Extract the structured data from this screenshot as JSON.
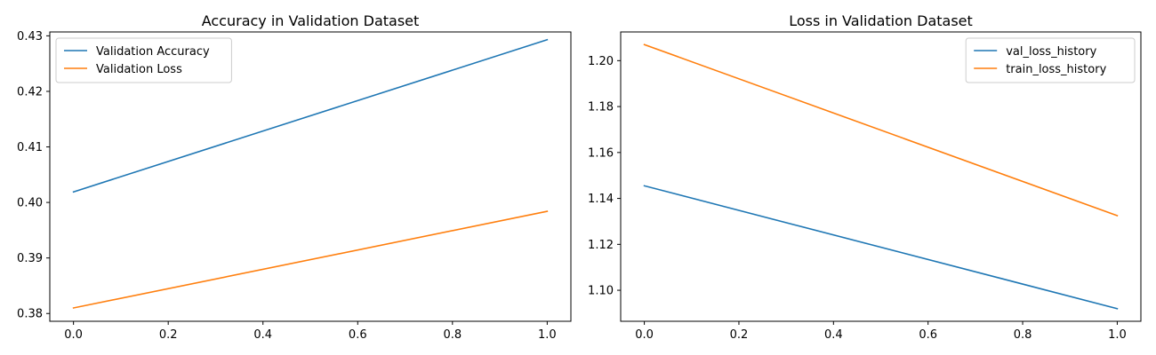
{
  "chart_data": [
    {
      "type": "line",
      "title": "Accuracy in Validation Dataset",
      "xlabel": "",
      "ylabel": "",
      "xlim": [
        -0.05,
        1.05
      ],
      "ylim": [
        0.3786,
        0.4307
      ],
      "xticks": [
        0.0,
        0.2,
        0.4,
        0.6,
        0.8,
        1.0
      ],
      "xtick_labels": [
        "0.0",
        "0.2",
        "0.4",
        "0.6",
        "0.8",
        "1.0"
      ],
      "yticks": [
        0.38,
        0.39,
        0.4,
        0.41,
        0.42,
        0.43
      ],
      "ytick_labels": [
        "0.38",
        "0.39",
        "0.40",
        "0.41",
        "0.42",
        "0.43"
      ],
      "grid": false,
      "legend_position": "top-left",
      "series": [
        {
          "name": "Validation Accuracy",
          "color": "#1f77b4",
          "x": [
            0,
            1
          ],
          "y": [
            0.4019,
            0.4293
          ]
        },
        {
          "name": "Validation Loss",
          "color": "#ff7f0e",
          "x": [
            0,
            1
          ],
          "y": [
            0.381,
            0.3984
          ]
        }
      ]
    },
    {
      "type": "line",
      "title": "Loss in Validation Dataset",
      "xlabel": "",
      "ylabel": "",
      "xlim": [
        -0.05,
        1.05
      ],
      "ylim": [
        1.0865,
        1.2125
      ],
      "xticks": [
        0.0,
        0.2,
        0.4,
        0.6,
        0.8,
        1.0
      ],
      "xtick_labels": [
        "0.0",
        "0.2",
        "0.4",
        "0.6",
        "0.8",
        "1.0"
      ],
      "yticks": [
        1.1,
        1.12,
        1.14,
        1.16,
        1.18,
        1.2
      ],
      "ytick_labels": [
        "1.10",
        "1.12",
        "1.14",
        "1.16",
        "1.18",
        "1.20"
      ],
      "grid": false,
      "legend_position": "top-right",
      "series": [
        {
          "name": "val_loss_history",
          "color": "#1f77b4",
          "x": [
            0,
            1
          ],
          "y": [
            1.1455,
            1.092
          ]
        },
        {
          "name": "train_loss_history",
          "color": "#ff7f0e",
          "x": [
            0,
            1
          ],
          "y": [
            1.207,
            1.1325
          ]
        }
      ]
    }
  ]
}
